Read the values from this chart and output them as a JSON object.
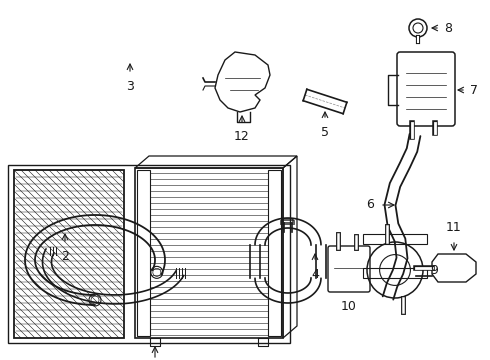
{
  "bg_color": "#ffffff",
  "line_color": "#1a1a1a",
  "fig_width": 4.9,
  "fig_height": 3.6,
  "dpi": 100,
  "xlim": [
    0,
    490
  ],
  "ylim": [
    0,
    360
  ]
}
